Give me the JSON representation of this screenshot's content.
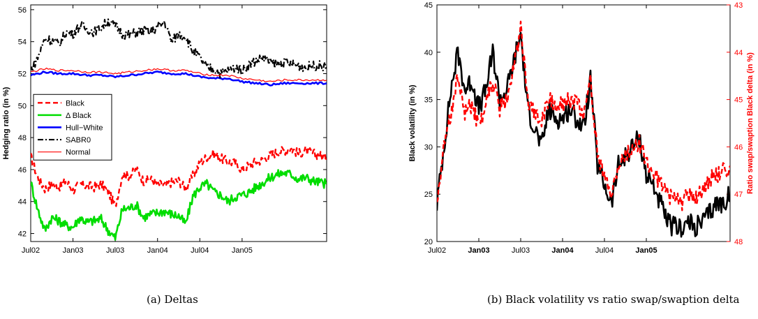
{
  "captions": {
    "a": "(a) Deltas",
    "b": "(b) Black volatility vs ratio swap/swaption delta"
  },
  "chart_data": [
    {
      "type": "line",
      "title": "",
      "xlabel": "",
      "ylabel": "Hedging ratio (in %)",
      "ylim": [
        41.5,
        56.3
      ],
      "xlim": [
        0,
        42
      ],
      "xtick_labels": [
        "Jul02",
        "Jan03",
        "Jul03",
        "Jan04",
        "Jul04",
        "Jan05"
      ],
      "xtick_pos": [
        0,
        6,
        12,
        18,
        24,
        30
      ],
      "yticks": [
        42,
        44,
        46,
        48,
        50,
        52,
        54,
        56
      ],
      "legend_position": "middle-left",
      "grid": false,
      "series": [
        {
          "name": "Black",
          "color": "#ff0000",
          "style": "dashed",
          "x": [
            0,
            1,
            2,
            3,
            4,
            5,
            6,
            7,
            8,
            9,
            10,
            11,
            12,
            13,
            14,
            15,
            16,
            17,
            18,
            19,
            20,
            21,
            22,
            23,
            24,
            25,
            26,
            27,
            28,
            29,
            30,
            31,
            32,
            33,
            34,
            35,
            36,
            37,
            38,
            39,
            40,
            41,
            42
          ],
          "values": [
            46.8,
            45.5,
            44.8,
            45.1,
            44.9,
            45.3,
            44.7,
            45.1,
            45.0,
            44.9,
            45.1,
            44.6,
            43.7,
            45.7,
            45.6,
            46.0,
            45.3,
            45.4,
            45.1,
            45.0,
            45.2,
            45.3,
            44.8,
            45.6,
            46.4,
            46.8,
            47.0,
            46.7,
            46.5,
            46.4,
            46.0,
            46.3,
            46.5,
            46.6,
            46.9,
            47.1,
            47.2,
            47.3,
            47.0,
            47.2,
            47.0,
            46.9,
            46.7
          ]
        },
        {
          "name": "Δ Black",
          "color": "#00dd00",
          "style": "solid",
          "x": [
            0,
            1,
            2,
            3,
            4,
            5,
            6,
            7,
            8,
            9,
            10,
            11,
            12,
            13,
            14,
            15,
            16,
            17,
            18,
            19,
            20,
            21,
            22,
            23,
            24,
            25,
            26,
            27,
            28,
            29,
            30,
            31,
            32,
            33,
            34,
            35,
            36,
            37,
            38,
            39,
            40,
            41,
            42
          ],
          "values": [
            45.2,
            43.5,
            42.2,
            43.0,
            42.8,
            42.5,
            42.4,
            43.0,
            42.7,
            42.8,
            42.9,
            42.2,
            41.7,
            43.5,
            43.6,
            43.8,
            43.0,
            43.2,
            43.3,
            43.4,
            43.2,
            43.1,
            42.6,
            44.3,
            44.9,
            45.1,
            44.6,
            44.4,
            44.0,
            44.3,
            44.4,
            44.6,
            44.9,
            45.2,
            45.5,
            45.7,
            45.8,
            45.7,
            45.4,
            45.5,
            45.3,
            45.2,
            45.1
          ]
        },
        {
          "name": "Hull−White",
          "color": "#0000ff",
          "style": "solid",
          "x": [
            0,
            2,
            4,
            6,
            8,
            10,
            12,
            14,
            16,
            18,
            20,
            22,
            24,
            26,
            28,
            30,
            32,
            34,
            36,
            38,
            40,
            42
          ],
          "values": [
            51.9,
            52.1,
            52.0,
            52.0,
            51.9,
            51.9,
            51.8,
            51.9,
            52.0,
            52.1,
            52.0,
            52.0,
            51.8,
            51.7,
            51.7,
            51.5,
            51.4,
            51.3,
            51.4,
            51.4,
            51.4,
            51.4
          ]
        },
        {
          "name": "SABR0",
          "color": "#000000",
          "style": "dashdot",
          "x": [
            0,
            1,
            2,
            3,
            4,
            5,
            6,
            7,
            8,
            9,
            10,
            11,
            12,
            13,
            14,
            15,
            16,
            17,
            18,
            19,
            20,
            21,
            22,
            23,
            24,
            25,
            26,
            27,
            28,
            29,
            30,
            31,
            32,
            33,
            34,
            35,
            36,
            37,
            38,
            39,
            40,
            41,
            42
          ],
          "values": [
            52.2,
            53.0,
            54.2,
            54.1,
            53.8,
            54.6,
            54.5,
            55.0,
            54.8,
            54.6,
            54.9,
            55.3,
            55.0,
            54.5,
            54.4,
            54.6,
            54.7,
            54.6,
            54.9,
            55.2,
            54.0,
            54.5,
            54.3,
            53.4,
            53.0,
            52.4,
            52.3,
            52.0,
            52.2,
            52.4,
            52.2,
            52.6,
            52.8,
            53.0,
            52.7,
            52.6,
            52.7,
            52.6,
            52.5,
            52.4,
            52.5,
            52.5,
            52.4
          ]
        },
        {
          "name": "Normal",
          "color": "#ff0000",
          "style": "thin",
          "x": [
            0,
            2,
            4,
            6,
            8,
            10,
            12,
            14,
            16,
            18,
            20,
            22,
            24,
            26,
            28,
            30,
            32,
            34,
            36,
            38,
            40,
            42
          ],
          "values": [
            52.1,
            52.3,
            52.2,
            52.2,
            52.1,
            52.1,
            52.0,
            52.1,
            52.2,
            52.3,
            52.2,
            52.2,
            52.0,
            51.9,
            51.9,
            51.7,
            51.6,
            51.5,
            51.6,
            51.6,
            51.6,
            51.6
          ]
        }
      ]
    },
    {
      "type": "line",
      "title": "",
      "xlabel": "",
      "ylabel": "Black volatility (in %)",
      "ylabel_right": "Ratio swap/swaption Black delta (in %)",
      "ylim": [
        20,
        45
      ],
      "ylim_right": [
        48,
        43
      ],
      "right_axis_inverted": true,
      "xlim": [
        0,
        42
      ],
      "xtick_labels": [
        "Jul02",
        "Jan03",
        "Jul03",
        "Jan04",
        "Jul04",
        "Jan05"
      ],
      "xtick_pos": [
        0,
        6,
        12,
        18,
        24,
        30
      ],
      "yticks": [
        20,
        25,
        30,
        35,
        40,
        45
      ],
      "yticks_right": [
        43,
        44,
        45,
        46,
        47,
        48
      ],
      "grid": false,
      "series": [
        {
          "name": "",
          "color": "#000000",
          "style": "solid",
          "axis": "left",
          "x": [
            0,
            1,
            2,
            3,
            4,
            5,
            6,
            7,
            8,
            9,
            10,
            11,
            12,
            13,
            14,
            15,
            16,
            17,
            18,
            19,
            20,
            21,
            22,
            23,
            24,
            25,
            26,
            27,
            28,
            29,
            30,
            31,
            32,
            33,
            34,
            35,
            36,
            37,
            38,
            39,
            40,
            41,
            42
          ],
          "values": [
            24,
            30,
            36,
            40,
            36,
            37,
            34,
            36,
            40,
            35,
            36,
            39,
            42,
            34,
            32,
            30,
            34,
            33,
            33,
            34,
            33,
            32,
            37,
            28,
            26,
            24,
            28,
            29,
            30,
            31,
            27,
            26,
            24,
            22,
            21.5,
            21.5,
            22,
            21.5,
            22,
            23,
            24,
            24,
            25
          ]
        },
        {
          "name": "",
          "color": "#ff0000",
          "style": "dashed",
          "axis": "right",
          "x": [
            0,
            1,
            2,
            3,
            4,
            5,
            6,
            7,
            8,
            9,
            10,
            11,
            12,
            13,
            14,
            15,
            16,
            17,
            18,
            19,
            20,
            21,
            22,
            23,
            24,
            25,
            26,
            27,
            28,
            29,
            30,
            31,
            32,
            33,
            34,
            35,
            36,
            37,
            38,
            39,
            40,
            41,
            42
          ],
          "values": [
            47.2,
            46.0,
            45.3,
            44.5,
            45.3,
            45.1,
            45.6,
            45.1,
            44.6,
            45.2,
            45.0,
            44.3,
            43.5,
            45.0,
            45.3,
            45.5,
            45.0,
            45.1,
            45.1,
            45.0,
            45.1,
            45.3,
            44.6,
            46.1,
            46.7,
            47.0,
            46.4,
            46.2,
            46.0,
            45.9,
            46.3,
            46.5,
            46.8,
            47.0,
            47.1,
            47.2,
            47.0,
            47.1,
            46.9,
            46.7,
            46.6,
            46.5,
            46.4
          ]
        }
      ]
    }
  ]
}
